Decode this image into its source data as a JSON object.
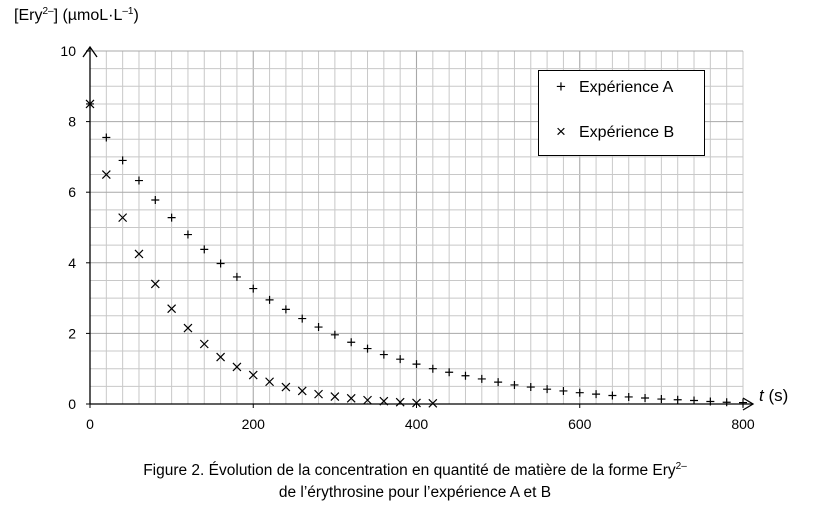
{
  "chart_data": {
    "type": "scatter",
    "ylabel": {
      "prefix": "[Ery",
      "sup": "2–",
      "suffix": "] (µmoL·L",
      "unit_sup": "–1",
      "end": ")"
    },
    "xlabel": {
      "var": "t",
      "unit": " (s)"
    },
    "xlim": [
      0,
      800
    ],
    "ylim": [
      0,
      10
    ],
    "x_ticks": [
      "0",
      "200",
      "400",
      "600",
      "800"
    ],
    "y_ticks": [
      "0",
      "2",
      "4",
      "6",
      "8",
      "10"
    ],
    "grid": true,
    "legend_position": "top-right",
    "series": [
      {
        "name": "Expérience A",
        "marker": "+",
        "x": [
          0,
          20,
          40,
          60,
          80,
          100,
          120,
          140,
          160,
          180,
          200,
          220,
          240,
          260,
          280,
          300,
          320,
          340,
          360,
          380,
          400,
          420,
          440,
          460,
          480,
          500,
          520,
          540,
          560,
          580,
          600,
          620,
          640,
          660,
          680,
          700,
          720,
          740,
          760,
          780,
          800
        ],
        "y": [
          8.5,
          7.55,
          6.9,
          6.33,
          5.78,
          5.28,
          4.8,
          4.38,
          3.98,
          3.6,
          3.27,
          2.95,
          2.68,
          2.42,
          2.18,
          1.96,
          1.75,
          1.57,
          1.4,
          1.27,
          1.13,
          1.0,
          0.9,
          0.8,
          0.71,
          0.62,
          0.54,
          0.48,
          0.42,
          0.37,
          0.32,
          0.28,
          0.24,
          0.2,
          0.17,
          0.14,
          0.12,
          0.1,
          0.07,
          0.05,
          0.04
        ]
      },
      {
        "name": "Expérience B",
        "marker": "×",
        "x": [
          0,
          20,
          40,
          60,
          80,
          100,
          120,
          140,
          160,
          180,
          200,
          220,
          240,
          260,
          280,
          300,
          320,
          340,
          360,
          380,
          400,
          420
        ],
        "y": [
          8.5,
          6.5,
          5.28,
          4.25,
          3.4,
          2.7,
          2.15,
          1.7,
          1.33,
          1.05,
          0.82,
          0.63,
          0.48,
          0.37,
          0.28,
          0.21,
          0.16,
          0.11,
          0.08,
          0.05,
          0.03,
          0.02
        ]
      }
    ]
  },
  "caption": {
    "line1_prefix": "Figure 2. Évolution de la concentration en quantité de matière de la forme Ery",
    "line1_sup": "2–",
    "line2": "de l’érythrosine pour l’expérience A et B"
  },
  "colors": {
    "grid": "#c8c8c8",
    "axis": "#000000",
    "marker": "#000000"
  }
}
